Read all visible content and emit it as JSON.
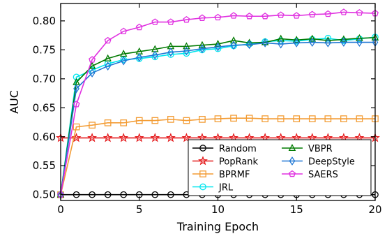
{
  "chart_data": {
    "type": "line",
    "xlabel": "Training Epoch",
    "ylabel": "AUC",
    "xlim": [
      0,
      20
    ],
    "ylim": [
      0.49,
      0.83
    ],
    "x_ticks": [
      0,
      5,
      10,
      15,
      20
    ],
    "y_ticks": [
      0.5,
      0.55,
      0.6,
      0.65,
      0.7,
      0.75,
      0.8
    ],
    "grid": false,
    "legend_position": "lower-right",
    "x": [
      0,
      1,
      2,
      3,
      4,
      5,
      6,
      7,
      8,
      9,
      10,
      11,
      12,
      13,
      14,
      15,
      16,
      17,
      18,
      19,
      20
    ],
    "series": [
      {
        "name": "Random",
        "color": "#000000",
        "marker": "circle",
        "values": [
          0.5,
          0.5,
          0.5,
          0.5,
          0.5,
          0.5,
          0.5,
          0.5,
          0.5,
          0.5,
          0.5,
          0.5,
          0.5,
          0.5,
          0.5,
          0.5,
          0.5,
          0.5,
          0.5,
          0.5,
          0.5
        ]
      },
      {
        "name": "PopRank",
        "color": "#e41a1c",
        "marker": "star",
        "values": [
          0.598,
          0.598,
          0.598,
          0.598,
          0.598,
          0.598,
          0.598,
          0.598,
          0.598,
          0.598,
          0.598,
          0.598,
          0.598,
          0.598,
          0.598,
          0.598,
          0.598,
          0.598,
          0.598,
          0.598,
          0.598
        ]
      },
      {
        "name": "BPRMF",
        "color": "#f39c34",
        "marker": "square",
        "values": [
          0.5,
          0.617,
          0.62,
          0.624,
          0.624,
          0.628,
          0.628,
          0.63,
          0.628,
          0.63,
          0.631,
          0.632,
          0.632,
          0.631,
          0.631,
          0.631,
          0.631,
          0.631,
          0.631,
          0.631,
          0.631
        ]
      },
      {
        "name": "JRL",
        "color": "#00e5ee",
        "marker": "circle",
        "values": [
          0.5,
          0.703,
          0.715,
          0.726,
          0.733,
          0.735,
          0.738,
          0.742,
          0.744,
          0.75,
          0.752,
          0.757,
          0.76,
          0.764,
          0.766,
          0.765,
          0.768,
          0.77,
          0.766,
          0.769,
          0.772
        ]
      },
      {
        "name": "VBPR",
        "color": "#007a00",
        "marker": "triangle",
        "values": [
          0.5,
          0.694,
          0.722,
          0.735,
          0.743,
          0.747,
          0.751,
          0.756,
          0.756,
          0.758,
          0.76,
          0.766,
          0.762,
          0.763,
          0.769,
          0.767,
          0.769,
          0.766,
          0.768,
          0.77,
          0.771
        ]
      },
      {
        "name": "DeepStyle",
        "color": "#1f77d4",
        "marker": "diamond",
        "values": [
          0.5,
          0.683,
          0.71,
          0.722,
          0.731,
          0.737,
          0.741,
          0.746,
          0.748,
          0.752,
          0.755,
          0.758,
          0.759,
          0.762,
          0.76,
          0.762,
          0.763,
          0.762,
          0.763,
          0.763,
          0.763
        ]
      },
      {
        "name": "SAERS",
        "color": "#e030e0",
        "marker": "pentagon",
        "values": [
          0.5,
          0.656,
          0.733,
          0.766,
          0.782,
          0.789,
          0.798,
          0.798,
          0.802,
          0.805,
          0.806,
          0.809,
          0.808,
          0.808,
          0.81,
          0.809,
          0.811,
          0.812,
          0.815,
          0.814,
          0.813
        ]
      }
    ]
  }
}
